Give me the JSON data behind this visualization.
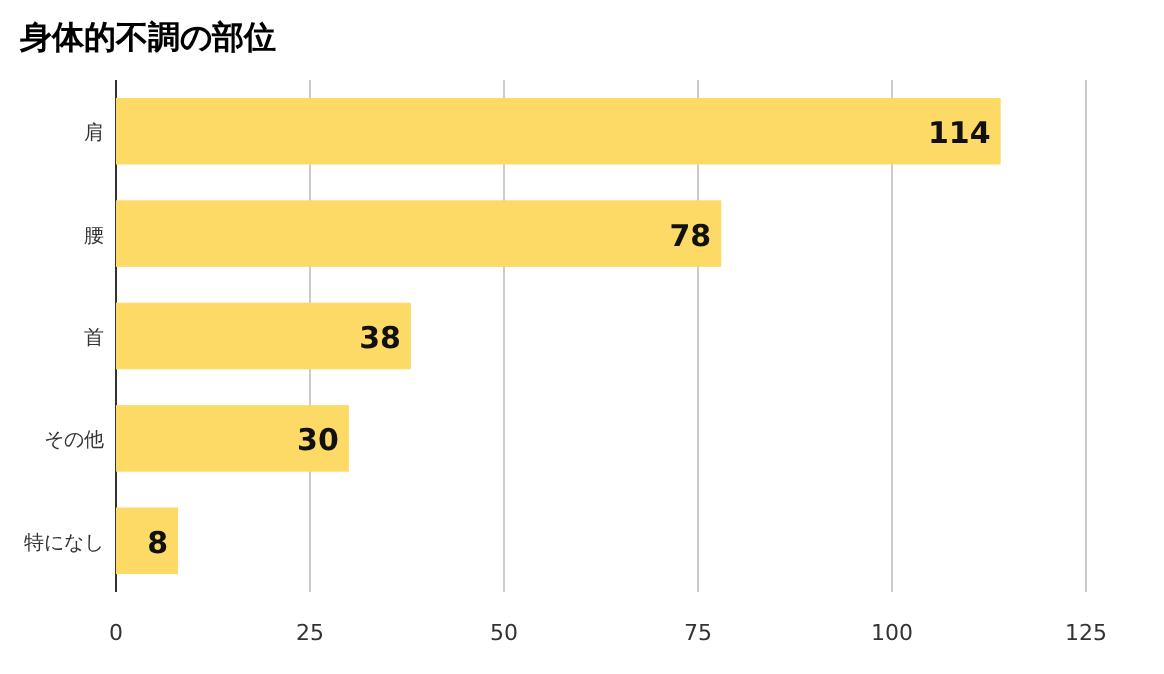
{
  "chart_data": {
    "type": "bar",
    "orientation": "horizontal",
    "title": "身体的不調の部位",
    "categories": [
      "肩",
      "腰",
      "首",
      "その他",
      "特になし"
    ],
    "values": [
      114,
      78,
      38,
      30,
      8
    ],
    "color": "#fdd966",
    "xlim": [
      0,
      125
    ],
    "xticks": [
      0,
      25,
      50,
      75,
      100,
      125
    ],
    "grid": "x",
    "data_labels": true
  }
}
